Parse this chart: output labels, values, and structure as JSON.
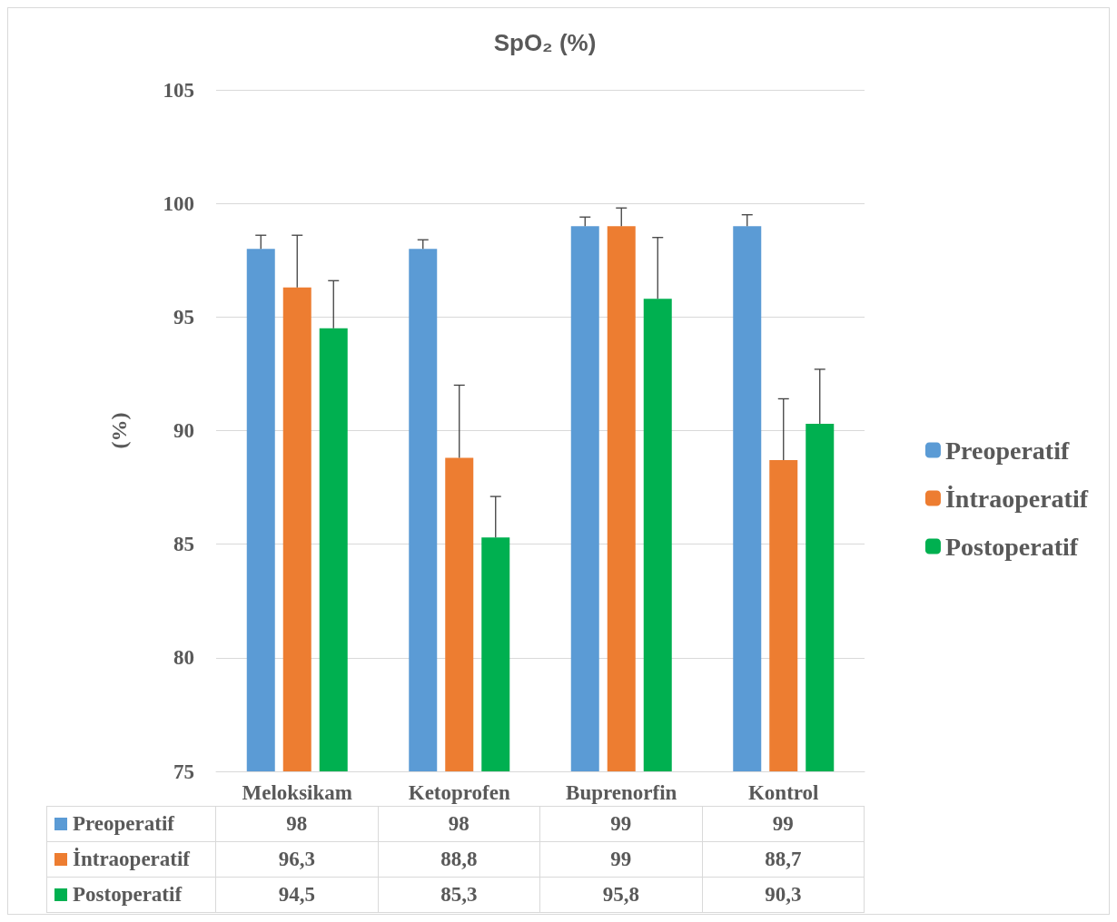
{
  "chart_data": {
    "type": "bar",
    "title": "SpO₂ (%)",
    "ylabel": "(%)",
    "categories": [
      "Meloksikam",
      "Ketoprofen",
      "Buprenorfin",
      "Kontrol"
    ],
    "series": [
      {
        "name": "Preoperatif",
        "color": "#5b9bd5",
        "values": [
          98,
          98,
          99,
          99
        ],
        "errors": [
          [
            98,
            98.6
          ],
          [
            98,
            98.4
          ],
          [
            99,
            99.4
          ],
          [
            99,
            99.5
          ]
        ],
        "value_labels": [
          "98",
          "98",
          "99",
          "99"
        ]
      },
      {
        "name": "İntraoperatif",
        "color": "#ed7d31",
        "values": [
          96.3,
          88.8,
          99,
          88.7
        ],
        "errors": [
          [
            96.3,
            98.6
          ],
          [
            88.8,
            92.0
          ],
          [
            99,
            99.8
          ],
          [
            88.7,
            91.4
          ]
        ],
        "value_labels": [
          "96,3",
          "88,8",
          "99",
          "88,7"
        ]
      },
      {
        "name": "Postoperatif",
        "color": "#00b050",
        "values": [
          94.5,
          85.3,
          95.8,
          90.3
        ],
        "errors": [
          [
            94.5,
            96.6
          ],
          [
            85.3,
            87.1
          ],
          [
            95.8,
            98.5
          ],
          [
            90.3,
            92.7
          ]
        ],
        "value_labels": [
          "94,5",
          "85,3",
          "95,8",
          "90,3"
        ]
      }
    ],
    "ylim": [
      75,
      105
    ],
    "yticks": [
      75,
      80,
      85,
      90,
      95,
      100,
      105
    ],
    "grid": "y",
    "legend": "right"
  }
}
